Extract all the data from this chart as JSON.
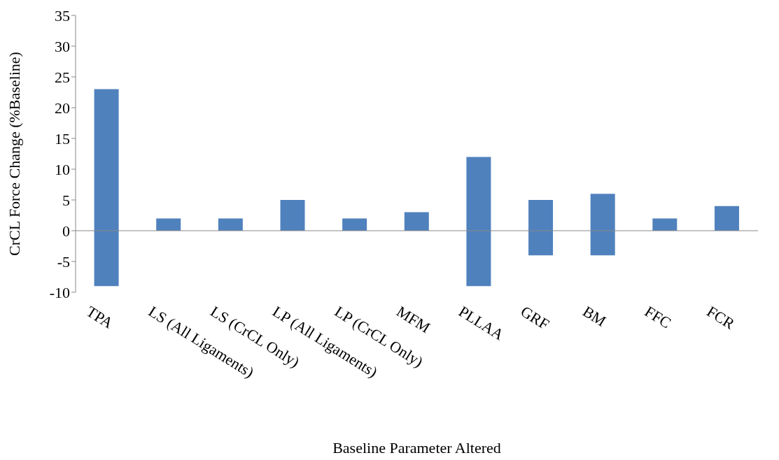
{
  "chart_data": {
    "type": "bar",
    "xlabel": "Baseline Parameter Altered",
    "ylabel": "CrCL Force Change (%Baseline)",
    "categories": [
      "TPA",
      "LS (All Ligaments)",
      "LS (CrCL Only)",
      "LP (All Ligaments)",
      "LP (CrCL Only)",
      "MFM",
      "PLLAA",
      "GRF",
      "BM",
      "FFC",
      "FCR"
    ],
    "base": [
      -9,
      0,
      0,
      0,
      0,
      0,
      -9,
      -4,
      -4,
      0,
      0
    ],
    "values": [
      32,
      2,
      2,
      5,
      2,
      3,
      21,
      9,
      10,
      2,
      4
    ],
    "color": "#4f81bd",
    "ylim": [
      -10,
      35
    ],
    "yticks": [
      -10,
      -5,
      0,
      5,
      10,
      15,
      20,
      25,
      30,
      35
    ],
    "ref_lines": [
      {
        "axis": "y",
        "value": 0,
        "color": "#888888"
      }
    ]
  }
}
